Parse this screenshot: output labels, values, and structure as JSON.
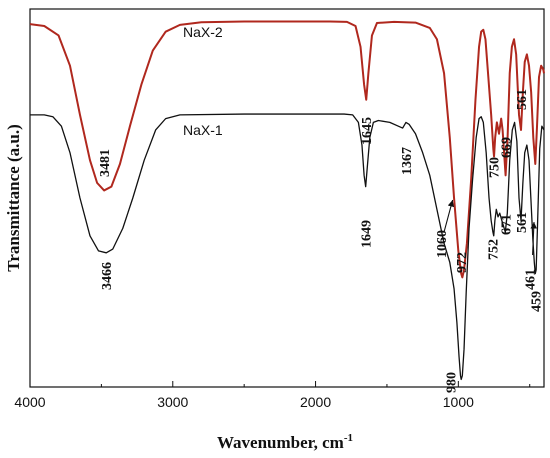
{
  "chart_data": {
    "type": "line",
    "title": "",
    "xlabel": "Wavenumber, cm",
    "xlabel_superscript": "-1",
    "ylabel": "Transmittance (a.u.)",
    "xlim": [
      4000,
      400
    ],
    "x_reversed": true,
    "x_ticks": [
      4000,
      3000,
      2000,
      1000
    ],
    "y_ticks_shown": false,
    "grid": false,
    "legend": "inline-labels",
    "series": [
      {
        "name": "NaX-2",
        "color": "#b0281e",
        "points": [
          [
            4000,
            0.96
          ],
          [
            3900,
            0.955
          ],
          [
            3800,
            0.93
          ],
          [
            3720,
            0.85
          ],
          [
            3650,
            0.72
          ],
          [
            3580,
            0.6
          ],
          [
            3530,
            0.54
          ],
          [
            3481,
            0.52
          ],
          [
            3430,
            0.53
          ],
          [
            3370,
            0.59
          ],
          [
            3300,
            0.69
          ],
          [
            3220,
            0.8
          ],
          [
            3140,
            0.89
          ],
          [
            3050,
            0.94
          ],
          [
            2950,
            0.958
          ],
          [
            2800,
            0.965
          ],
          [
            2500,
            0.967
          ],
          [
            2200,
            0.967
          ],
          [
            1900,
            0.967
          ],
          [
            1780,
            0.966
          ],
          [
            1720,
            0.955
          ],
          [
            1685,
            0.9
          ],
          [
            1660,
            0.8
          ],
          [
            1645,
            0.76
          ],
          [
            1630,
            0.83
          ],
          [
            1605,
            0.93
          ],
          [
            1570,
            0.963
          ],
          [
            1450,
            0.966
          ],
          [
            1300,
            0.964
          ],
          [
            1200,
            0.95
          ],
          [
            1150,
            0.92
          ],
          [
            1100,
            0.83
          ],
          [
            1060,
            0.66
          ],
          [
            1030,
            0.5
          ],
          [
            1000,
            0.36
          ],
          [
            980,
            0.3
          ],
          [
            972,
            0.29
          ],
          [
            960,
            0.31
          ],
          [
            940,
            0.38
          ],
          [
            910,
            0.55
          ],
          [
            880,
            0.76
          ],
          [
            855,
            0.9
          ],
          [
            840,
            0.94
          ],
          [
            825,
            0.945
          ],
          [
            810,
            0.92
          ],
          [
            790,
            0.82
          ],
          [
            770,
            0.72
          ],
          [
            755,
            0.63
          ],
          [
            750,
            0.61
          ],
          [
            742,
            0.66
          ],
          [
            730,
            0.7
          ],
          [
            715,
            0.67
          ],
          [
            700,
            0.71
          ],
          [
            690,
            0.68
          ],
          [
            669,
            0.56
          ],
          [
            655,
            0.66
          ],
          [
            640,
            0.83
          ],
          [
            625,
            0.9
          ],
          [
            610,
            0.92
          ],
          [
            595,
            0.88
          ],
          [
            575,
            0.72
          ],
          [
            561,
            0.68
          ],
          [
            548,
            0.78
          ],
          [
            535,
            0.86
          ],
          [
            520,
            0.88
          ],
          [
            505,
            0.85
          ],
          [
            490,
            0.78
          ],
          [
            475,
            0.66
          ],
          [
            461,
            0.59
          ],
          [
            450,
            0.68
          ],
          [
            435,
            0.82
          ],
          [
            420,
            0.85
          ],
          [
            405,
            0.84
          ],
          [
            400,
            0.83
          ]
        ]
      },
      {
        "name": "NaX-1",
        "color": "#111111",
        "points": [
          [
            4000,
            0.72
          ],
          [
            3900,
            0.72
          ],
          [
            3840,
            0.715
          ],
          [
            3780,
            0.69
          ],
          [
            3720,
            0.62
          ],
          [
            3650,
            0.5
          ],
          [
            3580,
            0.4
          ],
          [
            3520,
            0.36
          ],
          [
            3466,
            0.355
          ],
          [
            3420,
            0.365
          ],
          [
            3350,
            0.42
          ],
          [
            3280,
            0.5
          ],
          [
            3200,
            0.6
          ],
          [
            3120,
            0.68
          ],
          [
            3050,
            0.71
          ],
          [
            2950,
            0.72
          ],
          [
            2500,
            0.722
          ],
          [
            2100,
            0.722
          ],
          [
            1800,
            0.722
          ],
          [
            1740,
            0.72
          ],
          [
            1700,
            0.7
          ],
          [
            1675,
            0.64
          ],
          [
            1660,
            0.56
          ],
          [
            1649,
            0.53
          ],
          [
            1638,
            0.58
          ],
          [
            1620,
            0.66
          ],
          [
            1595,
            0.7
          ],
          [
            1560,
            0.705
          ],
          [
            1480,
            0.7
          ],
          [
            1420,
            0.69
          ],
          [
            1390,
            0.685
          ],
          [
            1367,
            0.7
          ],
          [
            1345,
            0.695
          ],
          [
            1300,
            0.67
          ],
          [
            1250,
            0.62
          ],
          [
            1200,
            0.56
          ],
          [
            1150,
            0.47
          ],
          [
            1100,
            0.38
          ],
          [
            1060,
            0.33
          ],
          [
            1030,
            0.26
          ],
          [
            1010,
            0.17
          ],
          [
            995,
            0.08
          ],
          [
            985,
            0.03
          ],
          [
            980,
            0.02
          ],
          [
            972,
            0.03
          ],
          [
            960,
            0.1
          ],
          [
            945,
            0.25
          ],
          [
            925,
            0.42
          ],
          [
            900,
            0.55
          ],
          [
            875,
            0.66
          ],
          [
            855,
            0.71
          ],
          [
            840,
            0.715
          ],
          [
            825,
            0.7
          ],
          [
            805,
            0.62
          ],
          [
            785,
            0.5
          ],
          [
            770,
            0.44
          ],
          [
            758,
            0.41
          ],
          [
            752,
            0.4
          ],
          [
            744,
            0.44
          ],
          [
            734,
            0.47
          ],
          [
            722,
            0.45
          ],
          [
            710,
            0.46
          ],
          [
            695,
            0.44
          ],
          [
            671,
            0.41
          ],
          [
            657,
            0.46
          ],
          [
            640,
            0.6
          ],
          [
            622,
            0.68
          ],
          [
            606,
            0.7
          ],
          [
            590,
            0.65
          ],
          [
            575,
            0.5
          ],
          [
            561,
            0.44
          ],
          [
            548,
            0.54
          ],
          [
            535,
            0.62
          ],
          [
            520,
            0.64
          ],
          [
            505,
            0.6
          ],
          [
            492,
            0.5
          ],
          [
            478,
            0.39
          ],
          [
            468,
            0.33
          ],
          [
            461,
            0.3
          ],
          [
            455,
            0.31
          ],
          [
            446,
            0.42
          ],
          [
            430,
            0.63
          ],
          [
            415,
            0.69
          ],
          [
            400,
            0.68
          ]
        ]
      }
    ],
    "annotations": [
      {
        "text": "3481",
        "series": "NaX-2",
        "x": 3481
      },
      {
        "text": "1645",
        "series": "NaX-2",
        "x": 1645
      },
      {
        "text": "972",
        "series": "NaX-2",
        "x": 972
      },
      {
        "text": "750",
        "series": "NaX-2",
        "x": 750
      },
      {
        "text": "669",
        "series": "NaX-2",
        "x": 669
      },
      {
        "text": "561",
        "series": "NaX-2",
        "x": 561
      },
      {
        "text": "3466",
        "series": "NaX-1",
        "x": 3466
      },
      {
        "text": "1649",
        "series": "NaX-1",
        "x": 1649
      },
      {
        "text": "1367",
        "series": "NaX-1",
        "x": 1367
      },
      {
        "text": "1060",
        "series": "NaX-1",
        "x": 1060
      },
      {
        "text": "980",
        "series": "NaX-1",
        "x": 980
      },
      {
        "text": "752",
        "series": "NaX-1",
        "x": 752
      },
      {
        "text": "671",
        "series": "NaX-1",
        "x": 671
      },
      {
        "text": "561",
        "series": "NaX-1",
        "x": 561
      },
      {
        "text": "461",
        "series": "NaX-1",
        "x": 461
      },
      {
        "text": "459",
        "series": "NaX-1",
        "x": 459
      }
    ]
  }
}
